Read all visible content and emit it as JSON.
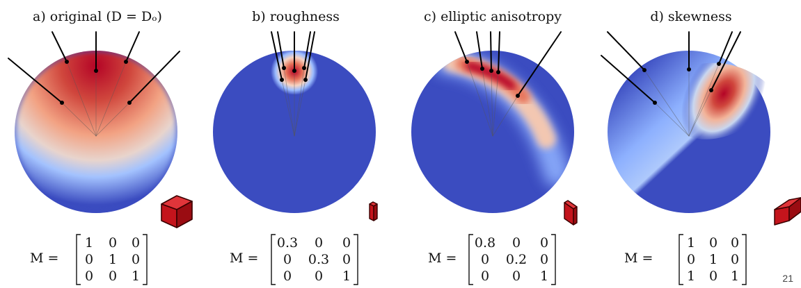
{
  "page_number": "21",
  "matrix_label": "M =",
  "panels": [
    {
      "title": "a) original (D = Dₒ)",
      "matrix": [
        [
          "1",
          "0",
          "0"
        ],
        [
          "0",
          "1",
          "0"
        ],
        [
          "0",
          "0",
          "1"
        ]
      ],
      "lobe": "wide"
    },
    {
      "title": "b) roughness",
      "matrix": [
        [
          "0.3",
          "0",
          "0"
        ],
        [
          "0",
          "0.3",
          "0"
        ],
        [
          "0",
          "0",
          "1"
        ]
      ],
      "lobe": "narrow"
    },
    {
      "title": "c) elliptic anisotropy",
      "matrix": [
        [
          "0.8",
          "0",
          "0"
        ],
        [
          "0",
          "0.2",
          "0"
        ],
        [
          "0",
          "0",
          "1"
        ]
      ],
      "lobe": "elliptic"
    },
    {
      "title": "d) skewness",
      "matrix": [
        [
          "1",
          "0",
          "0"
        ],
        [
          "0",
          "1",
          "0"
        ],
        [
          "1",
          "0",
          "1"
        ]
      ],
      "lobe": "skewed"
    }
  ],
  "colors": {
    "cold": "#3b4cc0",
    "hot": "#b40426",
    "box": "#c4141c"
  }
}
